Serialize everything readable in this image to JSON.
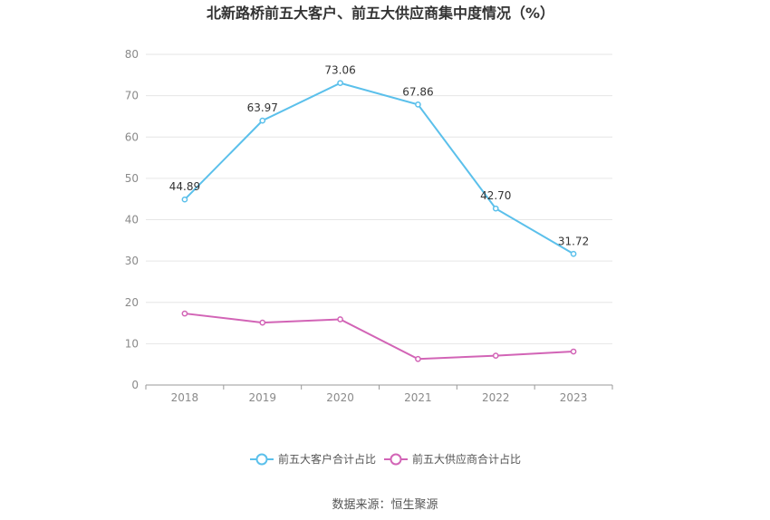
{
  "chart_data": {
    "type": "line",
    "title": "北新路桥前五大客户、前五大供应商集中度情况（%）",
    "categories": [
      "2018",
      "2019",
      "2020",
      "2021",
      "2022",
      "2023"
    ],
    "ylim": [
      0,
      80
    ],
    "yticks": [
      "0",
      "10",
      "20",
      "30",
      "40",
      "50",
      "60",
      "70",
      "80"
    ],
    "grid": true,
    "legend_position": "bottom",
    "series": [
      {
        "name": "前五大客户合计占比",
        "color": "#5bc0eb",
        "values": [
          44.89,
          63.97,
          73.06,
          67.86,
          42.7,
          31.72
        ],
        "labels": [
          "44.89",
          "63.97",
          "73.06",
          "67.86",
          "42.70",
          "31.72"
        ]
      },
      {
        "name": "前五大供应商合计占比",
        "color": "#d264b6",
        "values": [
          17.3,
          15.1,
          15.9,
          6.3,
          7.1,
          8.1
        ],
        "labels": []
      }
    ]
  },
  "source": "数据来源：恒生聚源"
}
